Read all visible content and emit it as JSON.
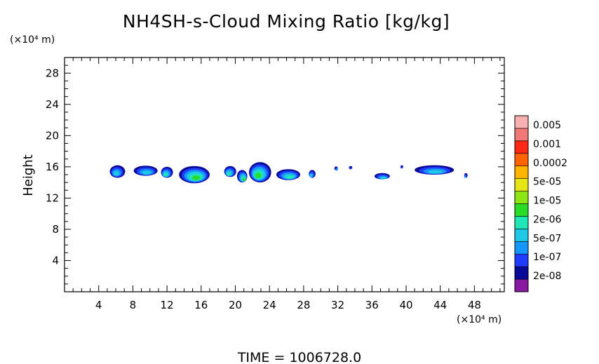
{
  "chart_data": {
    "type": "heatmap",
    "title": "NH4SH-s-Cloud Mixing Ratio [kg/kg]",
    "ylabel": "Height",
    "xlabel": "",
    "x_unit": "(×10⁴ m)",
    "y_unit": "(×10⁴ m)",
    "x_range": [
      0,
      51.5
    ],
    "y_range": [
      0,
      30
    ],
    "x_ticks": [
      4,
      8,
      12,
      16,
      20,
      24,
      28,
      32,
      36,
      40,
      44,
      48
    ],
    "y_ticks": [
      4,
      8,
      12,
      16,
      20,
      24,
      28
    ],
    "colorbar": {
      "labels": [
        "2e-08",
        "1e-07",
        "5e-07",
        "2e-06",
        "1e-05",
        "5e-05",
        "0.0002",
        "0.001",
        "0.005"
      ],
      "colors": [
        "#8a1aa0",
        "#0a0a9a",
        "#1f3cff",
        "#1496ff",
        "#1ec8e6",
        "#1ee6b4",
        "#28dc28",
        "#8ce614",
        "#e6e614",
        "#ffb400",
        "#ff6400",
        "#ff2814",
        "#f07878",
        "#f8b0b0"
      ]
    },
    "cloud_cells": [
      {
        "x": 6.2,
        "y": 15.4,
        "w": 1.8,
        "h": 1.6,
        "level": 4
      },
      {
        "x": 9.5,
        "y": 15.5,
        "w": 2.8,
        "h": 1.3,
        "level": 4
      },
      {
        "x": 12.0,
        "y": 15.3,
        "w": 1.4,
        "h": 1.4,
        "level": 5
      },
      {
        "x": 15.2,
        "y": 15.0,
        "w": 3.6,
        "h": 2.2,
        "level": 6
      },
      {
        "x": 19.4,
        "y": 15.4,
        "w": 1.4,
        "h": 1.4,
        "level": 5
      },
      {
        "x": 20.8,
        "y": 14.8,
        "w": 1.2,
        "h": 1.6,
        "level": 6
      },
      {
        "x": 22.9,
        "y": 15.3,
        "w": 2.6,
        "h": 2.6,
        "level": 6
      },
      {
        "x": 26.2,
        "y": 15.0,
        "w": 2.8,
        "h": 1.4,
        "level": 5
      },
      {
        "x": 29.0,
        "y": 15.1,
        "w": 0.8,
        "h": 1.0,
        "level": 4
      },
      {
        "x": 31.8,
        "y": 15.8,
        "w": 0.4,
        "h": 0.5,
        "level": 3
      },
      {
        "x": 33.5,
        "y": 15.9,
        "w": 0.4,
        "h": 0.4,
        "level": 2
      },
      {
        "x": 37.2,
        "y": 14.8,
        "w": 1.8,
        "h": 0.8,
        "level": 4
      },
      {
        "x": 39.5,
        "y": 16.0,
        "w": 0.3,
        "h": 0.4,
        "level": 2
      },
      {
        "x": 43.3,
        "y": 15.6,
        "w": 4.6,
        "h": 1.2,
        "level": 4
      },
      {
        "x": 47.0,
        "y": 14.9,
        "w": 0.4,
        "h": 0.6,
        "level": 3
      }
    ]
  },
  "time_label": "TIME",
  "time_sep": "=",
  "time_value": "1006728.0"
}
